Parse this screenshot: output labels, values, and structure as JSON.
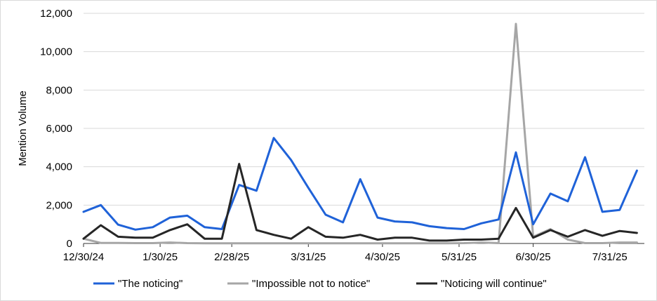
{
  "chart_data": {
    "type": "line",
    "title": "",
    "ylabel": "Mention Volume",
    "xlabel": "",
    "ylim": [
      0,
      12000
    ],
    "yticks": [
      "0",
      "2,000",
      "4,000",
      "6,000",
      "8,000",
      "10,000",
      "12,000"
    ],
    "ytick_values": [
      0,
      2000,
      4000,
      6000,
      8000,
      10000,
      12000
    ],
    "x": [
      "2024-12-30",
      "2025-01-06",
      "2025-01-13",
      "2025-01-20",
      "2025-01-27",
      "2025-02-03",
      "2025-02-10",
      "2025-02-17",
      "2025-02-24",
      "2025-03-03",
      "2025-03-10",
      "2025-03-17",
      "2025-03-24",
      "2025-03-31",
      "2025-04-07",
      "2025-04-14",
      "2025-04-21",
      "2025-04-28",
      "2025-05-05",
      "2025-05-12",
      "2025-05-19",
      "2025-05-26",
      "2025-06-02",
      "2025-06-09",
      "2025-06-16",
      "2025-06-23",
      "2025-06-30",
      "2025-07-07",
      "2025-07-14",
      "2025-07-21",
      "2025-07-28",
      "2025-08-04",
      "2025-08-11"
    ],
    "xtick_labels": [
      "12/30/24",
      "1/30/25",
      "2/28/25",
      "3/31/25",
      "4/30/25",
      "5/31/25",
      "6/30/25",
      "7/31/25"
    ],
    "xtick_dates": [
      "2024-12-30",
      "2025-01-30",
      "2025-02-28",
      "2025-03-31",
      "2025-04-30",
      "2025-05-31",
      "2025-06-30",
      "2025-07-31"
    ],
    "x_end": "2025-08-14",
    "grid": "horizontal",
    "legend_position": "bottom",
    "series": [
      {
        "name": "\"The noticing\"",
        "color": "#1f62d8",
        "values": [
          1650,
          2000,
          980,
          720,
          850,
          1350,
          1450,
          850,
          750,
          3050,
          2750,
          5500,
          4350,
          2900,
          1500,
          1100,
          3350,
          1350,
          1150,
          1100,
          900,
          800,
          750,
          1050,
          1250,
          4750,
          1000,
          2600,
          2200,
          4500,
          1650,
          1750,
          3800
        ]
      },
      {
        "name": "\"Impossible not to notice\"",
        "color": "#a6a6a6",
        "values": [
          250,
          30,
          30,
          20,
          20,
          50,
          20,
          10,
          10,
          10,
          10,
          10,
          10,
          10,
          10,
          10,
          10,
          10,
          10,
          10,
          10,
          10,
          20,
          50,
          20,
          11450,
          350,
          750,
          200,
          20,
          20,
          50,
          50
        ]
      },
      {
        "name": "\"Noticing will continue\"",
        "color": "#262626",
        "values": [
          250,
          950,
          350,
          300,
          300,
          700,
          1000,
          250,
          250,
          4150,
          700,
          450,
          250,
          850,
          350,
          300,
          450,
          200,
          300,
          300,
          150,
          150,
          200,
          200,
          250,
          1850,
          300,
          700,
          350,
          700,
          400,
          650,
          550
        ]
      }
    ]
  }
}
